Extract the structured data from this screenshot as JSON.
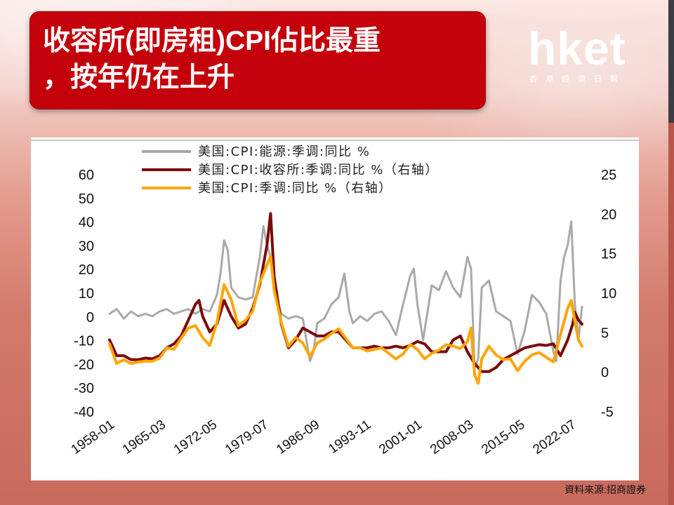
{
  "title": {
    "line1": "收容所(即房租)CPI佔比最重",
    "line2": "，按年仍在上升"
  },
  "logo": {
    "brand": "hket",
    "subtitle": "香港經濟日報"
  },
  "source": "資料來源:招商證券",
  "colors": {
    "title_bg": "#c4000b",
    "energy": "#a9a9a9",
    "shelter": "#7b0b0b",
    "cpi": "#ffa500"
  },
  "chart_data": {
    "type": "line",
    "x_ticks": [
      "1958-01",
      "1965-03",
      "1972-05",
      "1979-07",
      "1986-09",
      "1993-11",
      "2001-01",
      "2008-03",
      "2015-05",
      "2022-07"
    ],
    "xlim": [
      1958.0,
      2024.0
    ],
    "y_left": {
      "ticks": [
        60,
        50,
        40,
        30,
        20,
        10,
        0,
        -10,
        -20,
        -30,
        -40
      ],
      "range": [
        -40,
        60
      ]
    },
    "y_right": {
      "ticks": [
        25,
        20,
        15,
        10,
        5,
        0,
        -5
      ],
      "range": [
        -5,
        25
      ]
    },
    "series": [
      {
        "name": "美国:CPI:能源:季调:同比 %",
        "axis": "left",
        "x": [
          1958.0,
          1959.0,
          1960.0,
          1961.0,
          1962.0,
          1963.0,
          1964.0,
          1965.0,
          1966.0,
          1967.0,
          1968.0,
          1969.0,
          1970.0,
          1971.0,
          1972.0,
          1973.0,
          1973.5,
          1974.0,
          1974.5,
          1975.0,
          1976.0,
          1977.0,
          1978.0,
          1979.0,
          1979.5,
          1980.0,
          1980.5,
          1981.0,
          1982.0,
          1983.0,
          1984.0,
          1985.0,
          1986.0,
          1986.5,
          1987.0,
          1988.0,
          1989.0,
          1990.0,
          1990.8,
          1991.5,
          1992.0,
          1993.0,
          1994.0,
          1995.0,
          1996.0,
          1997.0,
          1998.0,
          1999.0,
          2000.0,
          2000.5,
          2001.0,
          2001.8,
          2002.0,
          2003.0,
          2004.0,
          2005.0,
          2006.0,
          2007.0,
          2008.0,
          2008.5,
          2009.0,
          2009.5,
          2010.0,
          2011.0,
          2012.0,
          2013.0,
          2014.0,
          2015.0,
          2016.0,
          2017.0,
          2018.0,
          2019.0,
          2020.0,
          2020.4,
          2021.0,
          2021.5,
          2022.0,
          2022.5,
          2023.0,
          2023.5,
          2024.0
        ],
        "y": [
          1,
          3,
          -1,
          2,
          0,
          1,
          0,
          2,
          3,
          1,
          2,
          3,
          1,
          3,
          2,
          9,
          18,
          32,
          28,
          12,
          8,
          7,
          8,
          25,
          38,
          30,
          25,
          12,
          1,
          -1,
          0,
          -1,
          -19,
          -15,
          -3,
          -1,
          5,
          8,
          18,
          2,
          -3,
          0,
          -2,
          1,
          2,
          -2,
          -8,
          5,
          17,
          20,
          5,
          -10,
          -6,
          13,
          11,
          19,
          12,
          8,
          25,
          20,
          -22,
          -18,
          12,
          15,
          2,
          0,
          -2,
          -16,
          -6,
          9,
          6,
          1,
          -15,
          -19,
          15,
          25,
          30,
          40,
          5,
          -10,
          4
        ]
      },
      {
        "name": "美国:CPI:收容所:季调:同比 %（右轴）",
        "axis": "right",
        "x": [
          1958.0,
          1959.0,
          1960.0,
          1961.0,
          1962.0,
          1963.0,
          1964.0,
          1965.0,
          1966.0,
          1967.0,
          1968.0,
          1969.0,
          1970.0,
          1970.5,
          1971.0,
          1972.0,
          1973.0,
          1974.0,
          1975.0,
          1976.0,
          1977.0,
          1978.0,
          1979.0,
          1980.0,
          1980.5,
          1981.0,
          1982.0,
          1983.0,
          1984.0,
          1985.0,
          1986.0,
          1987.0,
          1988.0,
          1989.0,
          1990.0,
          1991.0,
          1992.0,
          1993.0,
          1994.0,
          1995.0,
          1996.0,
          1997.0,
          1998.0,
          1999.0,
          2000.0,
          2001.0,
          2002.0,
          2003.0,
          2004.0,
          2005.0,
          2006.0,
          2007.0,
          2008.0,
          2009.0,
          2010.0,
          2011.0,
          2012.0,
          2013.0,
          2014.0,
          2015.0,
          2016.0,
          2017.0,
          2018.0,
          2019.0,
          2020.0,
          2021.0,
          2022.0,
          2022.7,
          2023.0,
          2023.5,
          2024.0
        ],
        "y": [
          4,
          2,
          2,
          1.5,
          1.5,
          1.7,
          1.6,
          2,
          3,
          3.5,
          4.5,
          6.5,
          8.5,
          9,
          7,
          5,
          6,
          9,
          7,
          5.5,
          6,
          8,
          11,
          16,
          20,
          12,
          6,
          3,
          4,
          5.5,
          5,
          4.5,
          4.5,
          5,
          5,
          4,
          3,
          3,
          3,
          3.2,
          3,
          3,
          3.2,
          3,
          3.3,
          3.8,
          3.5,
          2.5,
          2.5,
          2.5,
          4,
          4.5,
          2.5,
          1,
          0,
          0,
          0.5,
          1.5,
          2,
          2.5,
          3,
          3.2,
          3.4,
          3.3,
          3.5,
          2,
          4,
          6,
          7.5,
          6.5,
          6
        ]
      },
      {
        "name": "美国:CPI:季调:同比 %（右轴）",
        "axis": "right",
        "x": [
          1958.0,
          1959.0,
          1960.0,
          1961.0,
          1962.0,
          1963.0,
          1964.0,
          1965.0,
          1966.0,
          1967.0,
          1968.0,
          1969.0,
          1970.0,
          1971.0,
          1972.0,
          1973.0,
          1974.0,
          1975.0,
          1976.0,
          1977.0,
          1978.0,
          1979.0,
          1980.0,
          1980.5,
          1981.0,
          1982.0,
          1983.0,
          1984.0,
          1985.0,
          1986.0,
          1987.0,
          1988.0,
          1989.0,
          1990.0,
          1991.0,
          1992.0,
          1993.0,
          1994.0,
          1995.0,
          1996.0,
          1997.0,
          1998.0,
          1999.0,
          2000.0,
          2001.0,
          2002.0,
          2003.0,
          2004.0,
          2005.0,
          2006.0,
          2007.0,
          2008.0,
          2008.5,
          2009.0,
          2009.5,
          2010.0,
          2011.0,
          2012.0,
          2013.0,
          2014.0,
          2015.0,
          2016.0,
          2017.0,
          2018.0,
          2019.0,
          2020.0,
          2021.0,
          2022.0,
          2022.5,
          2023.0,
          2023.5,
          2024.0
        ],
        "y": [
          3.5,
          1,
          1.5,
          1,
          1.2,
          1.3,
          1.3,
          1.7,
          3,
          2.8,
          4.2,
          5.5,
          5.8,
          4.3,
          3.3,
          6.2,
          11,
          9.1,
          5.8,
          6.5,
          7.6,
          11.3,
          13.5,
          14.6,
          10.3,
          6.2,
          3.2,
          4.3,
          3.6,
          1.9,
          3.6,
          4.1,
          4.8,
          5.4,
          4.2,
          3,
          3,
          2.6,
          2.8,
          3,
          2.3,
          1.6,
          2.2,
          3.4,
          2.8,
          1.6,
          2.3,
          2.7,
          3.4,
          3.2,
          2.9,
          3.8,
          5.5,
          -0.4,
          -1.5,
          1.6,
          3.2,
          2.1,
          1.5,
          1.6,
          0.1,
          1.3,
          2.1,
          2.4,
          1.8,
          1.2,
          4.7,
          8,
          9,
          6.4,
          4,
          3.2
        ]
      }
    ]
  }
}
